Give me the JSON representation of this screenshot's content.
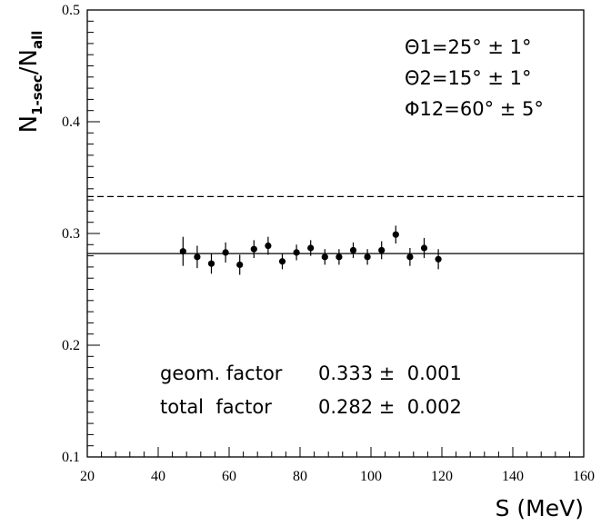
{
  "chart_data": {
    "type": "scatter",
    "xlabel": "S (MeV)",
    "ylabel": {
      "main": "N",
      "sub1": "1-sec",
      "slash": "/",
      "main2": "N",
      "sub2": "all"
    },
    "xlim": [
      20,
      160
    ],
    "ylim": [
      0.1,
      0.5
    ],
    "x_ticks": [
      20,
      40,
      60,
      80,
      100,
      120,
      140,
      160
    ],
    "x_tick_labels": [
      "20",
      "40",
      "60",
      "80",
      "100",
      "120",
      "140",
      "160"
    ],
    "y_ticks": [
      0.1,
      0.2,
      0.3,
      0.4,
      0.5
    ],
    "y_tick_labels": [
      "0.1",
      "0.2",
      "0.3",
      "0.4",
      "0.5"
    ],
    "grid": false,
    "series": [
      {
        "x": [
          47,
          51,
          55,
          59,
          63,
          67,
          71,
          75,
          79,
          83,
          87,
          91,
          95,
          99,
          103,
          107,
          111,
          115,
          119
        ],
        "y": [
          0.284,
          0.279,
          0.273,
          0.283,
          0.272,
          0.286,
          0.289,
          0.275,
          0.283,
          0.287,
          0.279,
          0.279,
          0.285,
          0.279,
          0.285,
          0.299,
          0.279,
          0.287,
          0.277
        ],
        "yerr": [
          0.013,
          0.01,
          0.009,
          0.009,
          0.009,
          0.008,
          0.008,
          0.007,
          0.007,
          0.007,
          0.007,
          0.007,
          0.007,
          0.007,
          0.008,
          0.008,
          0.008,
          0.009,
          0.009
        ]
      }
    ],
    "reference_lines": [
      {
        "y": 0.333,
        "style": "dashed"
      },
      {
        "y": 0.282,
        "style": "solid"
      }
    ],
    "annotations": {
      "theta1": "Θ1=25° ± 1°",
      "theta2": "Θ2=15° ± 1°",
      "phi12": "Φ12=60° ± 5°",
      "geom_label": "geom. factor",
      "geom_value": "0.333 ±  0.001",
      "total_label": "total  factor",
      "total_value": "0.282 ±  0.002"
    }
  }
}
